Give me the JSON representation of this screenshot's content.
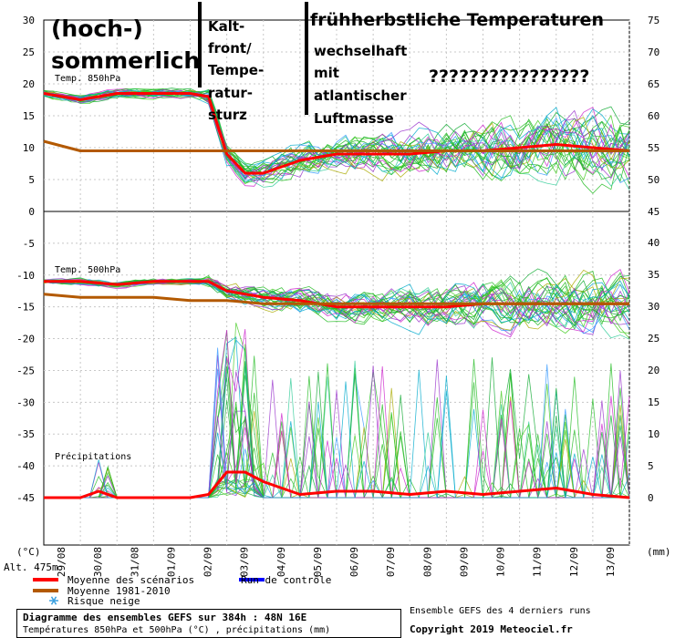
{
  "annotations": {
    "a1": "(hoch-)",
    "a2": "sommerlich",
    "a3": "Kalt-",
    "a4": "front/",
    "a5": "Tempe-",
    "a6": "ratur-",
    "a7": "sturz",
    "a8": "frühherbstliche Temperaturen",
    "a9": "wechselhaft",
    "a10": "mit",
    "a11": "atlantischer",
    "a12": "Luftmasse",
    "a13": "????????????????"
  },
  "panel_labels": {
    "t850": "Temp. 850hPa",
    "t500": "Temp. 500hPa",
    "precip": "Précipitations"
  },
  "axis": {
    "left_unit": "(°C)",
    "right_unit": "(mm)",
    "altitude": "Alt. 475m",
    "left_ticks": [
      "30",
      "25",
      "20",
      "15",
      "10",
      "5",
      "0",
      "-5",
      "-10",
      "-15",
      "-20",
      "-25",
      "-30",
      "-35",
      "-40",
      "-45"
    ],
    "right_ticks_upper": [
      "75",
      "70",
      "65",
      "60",
      "55",
      "50",
      "45"
    ],
    "right_ticks_lower": [
      "40",
      "35",
      "30",
      "25",
      "20",
      "15",
      "10",
      "5",
      "0"
    ],
    "date_labels": [
      "29/08",
      "30/08",
      "31/08",
      "01/09",
      "02/09",
      "03/09",
      "04/09",
      "05/09",
      "06/09",
      "07/09",
      "08/09",
      "09/09",
      "10/09",
      "11/09",
      "12/09",
      "13/09"
    ]
  },
  "legend": {
    "mean_label": "Moyenne des scénarios",
    "clim_label": "Moyenne 1981-2010",
    "control_label": "Run de contrôle",
    "snow_label": "Risque neige",
    "mean_color": "#ff0000",
    "clim_color": "#b35900",
    "control_color": "#0000ff",
    "snow_color": "#3aa0e0"
  },
  "footer": {
    "title": "Diagramme des ensembles GEFS sur 384h : 48N 16E",
    "subtitle": "Températures 850hPa et 500hPa (°C) , précipitations (mm)",
    "right1": "Ensemble GEFS des 4 derniers runs",
    "right2": "Copyright 2019 Meteociel.fr"
  },
  "chart_data": {
    "type": "line",
    "x_unit": "days (0 = 29/08 00h)",
    "xlim": [
      0,
      16
    ],
    "panels": [
      {
        "name": "Temp. 850hPa",
        "unit": "°C",
        "ylim": [
          0,
          30
        ],
        "series": [
          {
            "name": "Moyenne des scénarios",
            "x": [
              0,
              1,
              2,
              3,
              4,
              4.5,
              5,
              5.5,
              6,
              7,
              8,
              9,
              10,
              11,
              12,
              13,
              14,
              15,
              16
            ],
            "values": [
              18.5,
              17.5,
              18.5,
              18.5,
              18.5,
              18.0,
              9.0,
              6.0,
              6.0,
              8.0,
              9.0,
              9.0,
              9.0,
              9.5,
              9.5,
              10.0,
              10.5,
              10.0,
              9.5
            ]
          },
          {
            "name": "Moyenne 1981-2010",
            "x": [
              0,
              1,
              2,
              3,
              4,
              5,
              6,
              7,
              8,
              9,
              10,
              11,
              12,
              13,
              14,
              15,
              16
            ],
            "values": [
              11.0,
              9.5,
              9.5,
              9.5,
              9.5,
              9.5,
              9.5,
              9.5,
              9.5,
              9.5,
              9.5,
              9.5,
              9.5,
              9.5,
              9.5,
              9.5,
              9.5
            ]
          }
        ]
      },
      {
        "name": "Temp. 500hPa",
        "unit": "°C",
        "ylim": [
          -45,
          0
        ],
        "series": [
          {
            "name": "Moyenne des scénarios",
            "x": [
              0,
              1,
              2,
              3,
              4,
              4.5,
              5,
              6,
              7,
              8,
              9,
              10,
              11,
              12,
              13,
              14,
              15,
              16
            ],
            "values": [
              -11.0,
              -11.0,
              -11.5,
              -11.0,
              -11.0,
              -11.0,
              -12.5,
              -13.5,
              -14.0,
              -15.0,
              -15.0,
              -15.0,
              -15.0,
              -14.5,
              -14.5,
              -14.5,
              -14.5,
              -14.5
            ]
          },
          {
            "name": "Moyenne 1981-2010",
            "x": [
              0,
              1,
              2,
              3,
              4,
              5,
              6,
              7,
              8,
              9,
              10,
              11,
              12,
              13,
              14,
              15,
              16
            ],
            "values": [
              -13.0,
              -13.5,
              -13.5,
              -13.5,
              -14.0,
              -14.0,
              -14.5,
              -14.5,
              -14.5,
              -14.5,
              -14.5,
              -14.5,
              -14.5,
              -14.5,
              -14.5,
              -14.5,
              -14.5
            ]
          }
        ]
      },
      {
        "name": "Précipitations",
        "unit": "mm",
        "ylim": [
          0,
          40
        ],
        "series": [
          {
            "name": "Moyenne des scénarios",
            "x": [
              0,
              1,
              1.5,
              2,
              3,
              4,
              4.5,
              5,
              5.5,
              6,
              7,
              8,
              9,
              10,
              11,
              12,
              13,
              14,
              15,
              16
            ],
            "values": [
              0,
              0,
              1,
              0,
              0,
              0,
              0.5,
              4,
              4,
              2.5,
              0.5,
              1,
              1,
              0.5,
              1,
              0.5,
              1,
              1.5,
              0.5,
              0
            ]
          }
        ]
      }
    ]
  }
}
